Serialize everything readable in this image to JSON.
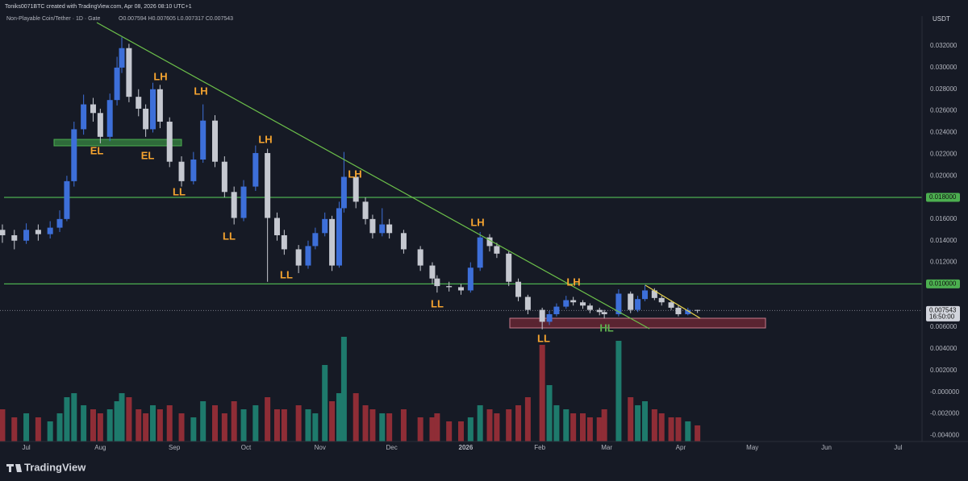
{
  "header": {
    "credit": "Toniks0071BTC created with TradingView.com, Apr 08, 2026 08:10 UTC+1",
    "symbol": "Non-Playable Coin/Tether · 1D · Gate",
    "ohlc": "O0.007594 H0.007605 L0.007317 C0.007543"
  },
  "footer": {
    "brand": "TradingView"
  },
  "chart_data": {
    "type": "candlestick",
    "currency": "USDT",
    "up_color": "#3d6fd9",
    "down_color": "#c5c8d0",
    "volume_up_color": "#1e7a6c",
    "volume_down_color": "#8f2d36",
    "xlim": [
      -11,
      374
    ],
    "xticks": [
      {
        "value": 0,
        "label": "Jul"
      },
      {
        "value": 31,
        "label": "Aug"
      },
      {
        "value": 62,
        "label": "Sep"
      },
      {
        "value": 92,
        "label": "Oct"
      },
      {
        "value": 123,
        "label": "Nov"
      },
      {
        "value": 153,
        "label": "Dec"
      },
      {
        "value": 184,
        "label": "2026"
      },
      {
        "value": 215,
        "label": "Feb"
      },
      {
        "value": 243,
        "label": "Mar"
      },
      {
        "value": 274,
        "label": "Apr"
      },
      {
        "value": 304,
        "label": "May"
      },
      {
        "value": 335,
        "label": "Jun"
      },
      {
        "value": 365,
        "label": "Jul"
      }
    ],
    "ylim": [
      -0.00457,
      0.03476
    ],
    "yticks": [
      {
        "value": 0.032,
        "label": "0.032000"
      },
      {
        "value": 0.03,
        "label": "0.030000"
      },
      {
        "value": 0.028,
        "label": "0.028000"
      },
      {
        "value": 0.026,
        "label": "0.026000"
      },
      {
        "value": 0.024,
        "label": "0.024000"
      },
      {
        "value": 0.022,
        "label": "0.022000"
      },
      {
        "value": 0.02,
        "label": "0.020000"
      },
      {
        "value": 0.016,
        "label": "0.016000"
      },
      {
        "value": 0.014,
        "label": "0.014000"
      },
      {
        "value": 0.012,
        "label": "0.012000"
      },
      {
        "value": 0.006,
        "label": "0.006000"
      },
      {
        "value": 0.004,
        "label": "0.004000"
      },
      {
        "value": 0.002,
        "label": "0.002000"
      },
      {
        "value": 0,
        "label": "-0.000000"
      },
      {
        "value": -0.002,
        "label": "-0.002000"
      },
      {
        "value": -0.004,
        "label": "-0.004000"
      }
    ],
    "levels": [
      {
        "value": 0.018,
        "label": "0.018000",
        "color": "#4caf50"
      },
      {
        "value": 0.01,
        "label": "0.010000",
        "color": "#4caf50"
      }
    ],
    "last_price": {
      "value": 0.007543,
      "label": "0.007543",
      "countdown": "16:50:00"
    },
    "x": [
      -10,
      -5,
      0,
      5,
      10,
      14,
      17,
      20,
      24,
      28,
      31,
      35,
      38,
      40,
      43,
      47,
      50,
      53,
      56,
      60,
      65,
      70,
      74,
      79,
      83,
      87,
      91,
      96,
      101,
      105,
      108,
      114,
      118,
      121,
      125,
      128,
      131,
      133,
      138,
      142,
      145,
      149,
      152,
      158,
      165,
      170,
      172,
      177,
      182,
      186,
      190,
      194,
      197,
      202,
      206,
      210,
      216,
      219,
      222,
      226,
      229,
      233,
      236,
      240,
      242,
      248,
      253,
      256,
      259,
      263,
      266,
      270,
      273,
      277,
      281
    ],
    "open": [
      0.015,
      0.0145,
      0.014,
      0.015,
      0.0146,
      0.0152,
      0.016,
      0.0195,
      0.0243,
      0.0266,
      0.0258,
      0.0236,
      0.027,
      0.03,
      0.0318,
      0.0273,
      0.0262,
      0.0243,
      0.028,
      0.025,
      0.0213,
      0.0195,
      0.0215,
      0.0251,
      0.0213,
      0.0185,
      0.0161,
      0.019,
      0.0221,
      0.0161,
      0.0145,
      0.0132,
      0.0117,
      0.0135,
      0.0147,
      0.016,
      0.0117,
      0.017,
      0.0199,
      0.0176,
      0.016,
      0.0147,
      0.0155,
      0.0147,
      0.0132,
      0.0117,
      0.0105,
      0.0098,
      0.0097,
      0.0094,
      0.0115,
      0.0143,
      0.0135,
      0.0128,
      0.0102,
      0.0088,
      0.0076,
      0.0065,
      0.0072,
      0.0079,
      0.0085,
      0.0083,
      0.008,
      0.0076,
      0.0074,
      0.0072,
      0.0091,
      0.0076,
      0.0086,
      0.0094,
      0.0087,
      0.0083,
      0.0078,
      0.0072,
      0.007594
    ],
    "high": [
      0.0155,
      0.015,
      0.0156,
      0.0155,
      0.0158,
      0.0168,
      0.02,
      0.025,
      0.0275,
      0.0272,
      0.0262,
      0.0276,
      0.031,
      0.0328,
      0.0322,
      0.028,
      0.0266,
      0.0286,
      0.0284,
      0.0254,
      0.0218,
      0.0222,
      0.0266,
      0.0256,
      0.0218,
      0.019,
      0.0196,
      0.0228,
      0.0225,
      0.0166,
      0.015,
      0.0136,
      0.014,
      0.0152,
      0.0166,
      0.0163,
      0.0176,
      0.0222,
      0.0205,
      0.018,
      0.0164,
      0.017,
      0.016,
      0.015,
      0.0135,
      0.012,
      0.0108,
      0.0102,
      0.01,
      0.012,
      0.0148,
      0.0146,
      0.0138,
      0.013,
      0.0105,
      0.009,
      0.0078,
      0.0075,
      0.0082,
      0.0089,
      0.0088,
      0.0085,
      0.0082,
      0.0078,
      0.0076,
      0.0095,
      0.0093,
      0.0089,
      0.0099,
      0.0096,
      0.0089,
      0.0085,
      0.008,
      0.0078,
      0.007605
    ],
    "low": [
      0.0138,
      0.0132,
      0.0137,
      0.014,
      0.0142,
      0.0148,
      0.0158,
      0.019,
      0.0238,
      0.025,
      0.023,
      0.0232,
      0.0265,
      0.0295,
      0.0268,
      0.0255,
      0.0236,
      0.024,
      0.0244,
      0.0208,
      0.019,
      0.0192,
      0.0212,
      0.0208,
      0.018,
      0.0155,
      0.0158,
      0.0186,
      0.0102,
      0.014,
      0.0127,
      0.011,
      0.0114,
      0.0132,
      0.0144,
      0.0112,
      0.0115,
      0.0166,
      0.017,
      0.0155,
      0.0142,
      0.0144,
      0.0142,
      0.0128,
      0.0112,
      0.01,
      0.0092,
      0.0093,
      0.009,
      0.0092,
      0.0112,
      0.013,
      0.0124,
      0.0098,
      0.0084,
      0.0072,
      0.0058,
      0.0062,
      0.007,
      0.0077,
      0.008,
      0.0077,
      0.0073,
      0.0071,
      0.0068,
      0.007,
      0.0073,
      0.0074,
      0.0084,
      0.0085,
      0.008,
      0.0076,
      0.007,
      0.0071,
      0.007317
    ],
    "close": [
      0.0145,
      0.014,
      0.015,
      0.0146,
      0.0152,
      0.016,
      0.0195,
      0.0243,
      0.0266,
      0.0258,
      0.0236,
      0.027,
      0.03,
      0.0318,
      0.0273,
      0.0262,
      0.0243,
      0.028,
      0.025,
      0.0213,
      0.0195,
      0.0215,
      0.0251,
      0.0213,
      0.0185,
      0.0161,
      0.019,
      0.0221,
      0.0161,
      0.0145,
      0.0132,
      0.0117,
      0.0135,
      0.0147,
      0.016,
      0.0117,
      0.017,
      0.0199,
      0.0176,
      0.016,
      0.0147,
      0.0155,
      0.0147,
      0.0132,
      0.0117,
      0.0105,
      0.0098,
      0.0097,
      0.0094,
      0.0115,
      0.0143,
      0.0135,
      0.0128,
      0.0102,
      0.0088,
      0.0076,
      0.0065,
      0.0072,
      0.0079,
      0.0085,
      0.0083,
      0.008,
      0.0076,
      0.0074,
      0.0072,
      0.0091,
      0.0076,
      0.0086,
      0.0094,
      0.0087,
      0.0083,
      0.0078,
      0.0072,
      0.0076,
      0.007543
    ],
    "volume": [
      40,
      30,
      35,
      30,
      25,
      35,
      55,
      60,
      45,
      40,
      35,
      40,
      50,
      60,
      55,
      40,
      35,
      45,
      40,
      45,
      35,
      30,
      50,
      45,
      35,
      50,
      40,
      45,
      55,
      40,
      40,
      45,
      40,
      35,
      95,
      50,
      60,
      130,
      60,
      45,
      40,
      35,
      35,
      40,
      30,
      30,
      35,
      25,
      25,
      30,
      45,
      40,
      35,
      40,
      45,
      55,
      120,
      70,
      45,
      40,
      35,
      35,
      30,
      30,
      40,
      125,
      55,
      45,
      50,
      40,
      35,
      30,
      30,
      25,
      20
    ],
    "annotations": [
      {
        "label": "LH",
        "color": "#f5a430"
      },
      {
        "label": "LH",
        "color": "#f5a430"
      },
      {
        "label": "LH",
        "color": "#f5a430"
      },
      {
        "label": "LH",
        "color": "#f5a430"
      },
      {
        "label": "LH",
        "color": "#f5a430"
      },
      {
        "label": "LH",
        "color": "#f5a430"
      },
      {
        "label": "EL",
        "color": "#f5a430"
      },
      {
        "label": "EL",
        "color": "#f5a430"
      },
      {
        "label": "LL",
        "color": "#f5a430"
      },
      {
        "label": "LL",
        "color": "#f5a430"
      },
      {
        "label": "LL",
        "color": "#f5a430"
      },
      {
        "label": "LL",
        "color": "#f5a430"
      },
      {
        "label": "LL",
        "color": "#f5a430"
      },
      {
        "label": "HL",
        "color": "#5fb04f"
      }
    ]
  }
}
